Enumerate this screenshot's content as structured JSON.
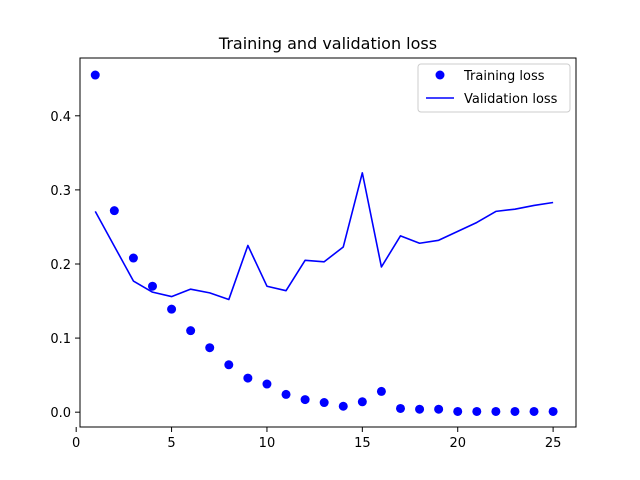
{
  "chart_data": {
    "type": "line",
    "title": "Training and validation loss",
    "xlabel": "",
    "ylabel": "",
    "xlim": [
      0.2,
      26.2
    ],
    "ylim": [
      -0.02,
      0.478
    ],
    "xticks": [
      0,
      5,
      10,
      15,
      20,
      25
    ],
    "yticks": [
      0.0,
      0.1,
      0.2,
      0.3,
      0.4
    ],
    "xtick_labels": [
      "0",
      "5",
      "10",
      "15",
      "20",
      "25"
    ],
    "ytick_labels": [
      "0.0",
      "0.1",
      "0.2",
      "0.3",
      "0.4"
    ],
    "legend_position": "top-right",
    "x": [
      1,
      2,
      3,
      4,
      5,
      6,
      7,
      8,
      9,
      10,
      11,
      12,
      13,
      14,
      15,
      16,
      17,
      18,
      19,
      20,
      21,
      22,
      23,
      24,
      25
    ],
    "series": [
      {
        "name": "Training loss",
        "style": "points",
        "color": "#0000ff",
        "values": [
          0.455,
          0.272,
          0.208,
          0.17,
          0.139,
          0.11,
          0.087,
          0.064,
          0.046,
          0.038,
          0.024,
          0.017,
          0.013,
          0.008,
          0.014,
          0.028,
          0.005,
          0.004,
          0.004,
          0.001,
          0.001,
          0.001,
          0.001,
          0.001,
          0.001
        ]
      },
      {
        "name": "Validation loss",
        "style": "line",
        "color": "#0000ff",
        "values": [
          0.271,
          0.224,
          0.177,
          0.162,
          0.156,
          0.166,
          0.161,
          0.152,
          0.225,
          0.17,
          0.164,
          0.205,
          0.203,
          0.223,
          0.323,
          0.196,
          0.238,
          0.228,
          0.232,
          0.244,
          0.256,
          0.271,
          0.274,
          0.279,
          0.283
        ]
      }
    ]
  }
}
